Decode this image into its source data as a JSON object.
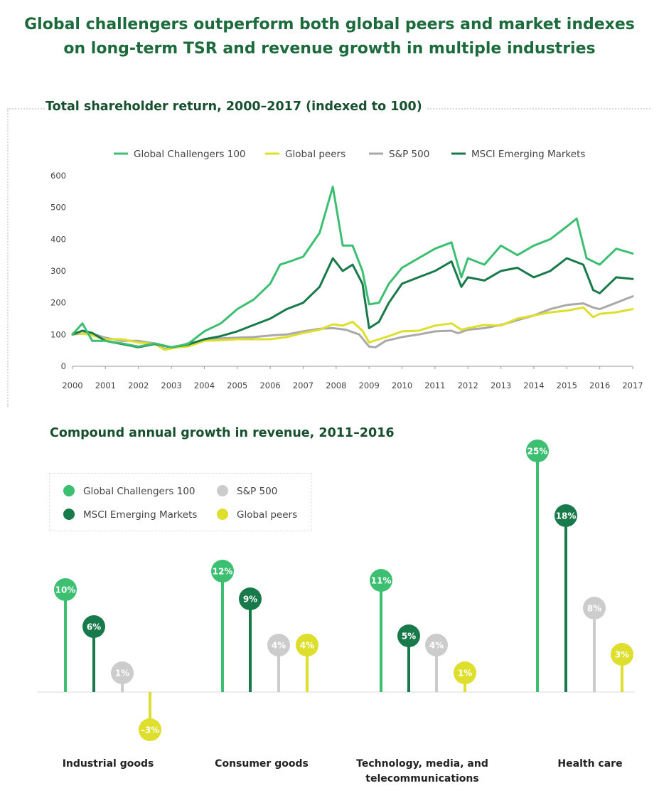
{
  "title_line1": "Global challengers outperform both global peers and market indexes",
  "title_line2": "on long-term TSR and revenue growth in multiple industries",
  "tsr": {
    "subtitle": "Total shareholder return, 2000–2017 (indexed to 100)",
    "legend": [
      {
        "name": "Global Challengers 100",
        "color": "#3dbf72"
      },
      {
        "name": "Global peers",
        "color": "#dede2c"
      },
      {
        "name": "S&P 500",
        "color": "#a9a9a9"
      },
      {
        "name": "MSCI Emerging Markets",
        "color": "#187a4a"
      }
    ]
  },
  "revenue": {
    "subtitle": "Compound annual growth in revenue, 2011–2016",
    "legend": [
      {
        "name": "Global Challengers 100",
        "color": "#3dbf72"
      },
      {
        "name": "S&P 500",
        "color": "#cccccc"
      },
      {
        "name": "MSCI Emerging Markets",
        "color": "#187a4a"
      },
      {
        "name": "Global peers",
        "color": "#dede2c"
      }
    ],
    "categories": [
      "Industrial goods",
      "Consumer goods",
      "Technology, media, and\ntelecommunications",
      "Health care"
    ]
  },
  "chart_data": [
    {
      "type": "line",
      "title": "Total shareholder return, 2000–2017 (indexed to 100)",
      "xlim": [
        2000,
        2017
      ],
      "ylim": [
        0,
        600
      ],
      "yticks": [
        0,
        100,
        200,
        300,
        400,
        500,
        600
      ],
      "xticks": [
        2000,
        2001,
        2002,
        2003,
        2004,
        2005,
        2006,
        2007,
        2008,
        2009,
        2010,
        2011,
        2012,
        2013,
        2014,
        2015,
        2016,
        2017
      ],
      "grid": false,
      "legend_position": "top",
      "series": [
        {
          "name": "S&P 500",
          "color": "#a9a9a9",
          "x": [
            2000,
            2000.5,
            2001,
            2001.5,
            2002,
            2002.5,
            2002.8,
            2003.2,
            2003.5,
            2004,
            2004.5,
            2005,
            2005.5,
            2006,
            2006.5,
            2007,
            2007.5,
            2007.9,
            2008.3,
            2008.7,
            2009,
            2009.2,
            2009.5,
            2010,
            2010.5,
            2011,
            2011.5,
            2011.7,
            2012,
            2012.5,
            2013,
            2013.5,
            2014,
            2014.5,
            2015,
            2015.5,
            2015.8,
            2016,
            2016.5,
            2017
          ],
          "y": [
            100,
            105,
            90,
            80,
            80,
            72,
            55,
            62,
            72,
            82,
            88,
            90,
            92,
            97,
            100,
            110,
            118,
            120,
            115,
            100,
            62,
            60,
            80,
            92,
            100,
            110,
            112,
            104,
            115,
            120,
            130,
            145,
            160,
            180,
            193,
            198,
            185,
            180,
            200,
            220
          ]
        },
        {
          "name": "Global peers",
          "color": "#dede2c",
          "x": [
            2000,
            2000.5,
            2001,
            2001.5,
            2002,
            2002.5,
            2002.8,
            2003.2,
            2003.5,
            2004,
            2004.5,
            2005,
            2005.5,
            2006,
            2006.5,
            2007,
            2007.5,
            2007.9,
            2008.2,
            2008.5,
            2008.8,
            2009,
            2009.3,
            2009.6,
            2010,
            2010.5,
            2011,
            2011.5,
            2011.8,
            2012,
            2012.5,
            2013,
            2013.5,
            2014,
            2014.5,
            2015,
            2015.5,
            2015.8,
            2016,
            2016.5,
            2017
          ],
          "y": [
            105,
            100,
            85,
            85,
            75,
            70,
            52,
            60,
            62,
            80,
            82,
            85,
            85,
            85,
            92,
            105,
            115,
            132,
            128,
            140,
            112,
            75,
            85,
            95,
            110,
            112,
            128,
            135,
            115,
            120,
            130,
            128,
            150,
            160,
            170,
            175,
            185,
            155,
            165,
            170,
            180
          ]
        },
        {
          "name": "MSCI Emerging Markets",
          "color": "#187a4a",
          "x": [
            2000,
            2000.3,
            2000.6,
            2001,
            2001.5,
            2002,
            2002.5,
            2003,
            2003.5,
            2004,
            2004.5,
            2005,
            2005.5,
            2006,
            2006.5,
            2007,
            2007.5,
            2007.9,
            2008.2,
            2008.5,
            2008.8,
            2009,
            2009.3,
            2009.6,
            2010,
            2010.5,
            2011,
            2011.5,
            2011.8,
            2012,
            2012.5,
            2013,
            2013.5,
            2014,
            2014.5,
            2015,
            2015.5,
            2015.8,
            2016,
            2016.5,
            2017
          ],
          "y": [
            100,
            112,
            105,
            80,
            70,
            60,
            70,
            60,
            68,
            85,
            95,
            110,
            130,
            150,
            180,
            200,
            250,
            340,
            300,
            320,
            260,
            120,
            140,
            200,
            260,
            280,
            300,
            330,
            250,
            280,
            270,
            300,
            310,
            280,
            300,
            340,
            320,
            240,
            230,
            280,
            275
          ]
        },
        {
          "name": "Global Challengers 100",
          "color": "#3dbf72",
          "x": [
            2000,
            2000.3,
            2000.6,
            2001,
            2001.5,
            2002,
            2002.5,
            2003,
            2003.5,
            2004,
            2004.5,
            2005,
            2005.5,
            2006,
            2006.3,
            2006.6,
            2007,
            2007.5,
            2007.9,
            2008.2,
            2008.5,
            2008.8,
            2009,
            2009.3,
            2009.6,
            2010,
            2010.5,
            2011,
            2011.5,
            2011.8,
            2012,
            2012.5,
            2013,
            2013.5,
            2014,
            2014.5,
            2015,
            2015.3,
            2015.6,
            2016,
            2016.5,
            2017
          ],
          "y": [
            100,
            135,
            80,
            80,
            72,
            62,
            72,
            60,
            70,
            110,
            135,
            180,
            210,
            260,
            320,
            330,
            345,
            420,
            565,
            380,
            380,
            300,
            195,
            200,
            260,
            310,
            340,
            370,
            390,
            280,
            340,
            320,
            380,
            350,
            380,
            400,
            440,
            465,
            340,
            320,
            370,
            355
          ]
        }
      ]
    },
    {
      "type": "bar",
      "title": "Compound annual growth in revenue, 2011–2016",
      "categories": [
        "Industrial goods",
        "Consumer goods",
        "Technology, media, and telecommunications",
        "Health care"
      ],
      "unit": "%",
      "legend_position": "top-left",
      "series": [
        {
          "name": "Global Challengers 100",
          "color": "#3dbf72",
          "values": [
            10,
            12,
            11,
            25
          ]
        },
        {
          "name": "MSCI Emerging Markets",
          "color": "#187a4a",
          "values": [
            6,
            9,
            5,
            18
          ]
        },
        {
          "name": "S&P 500",
          "color": "#cccccc",
          "values": [
            1,
            4,
            4,
            8
          ]
        },
        {
          "name": "Global peers",
          "color": "#dede2c",
          "values": [
            -3,
            4,
            1,
            3
          ]
        }
      ],
      "value_labels": [
        [
          "10%",
          "6%",
          "1%",
          "–3%"
        ],
        [
          "12%",
          "9%",
          "4%",
          "4%"
        ],
        [
          "11%",
          "5%",
          "4%",
          "1%"
        ],
        [
          "25%",
          "18%",
          "8%",
          "3%"
        ]
      ]
    }
  ]
}
